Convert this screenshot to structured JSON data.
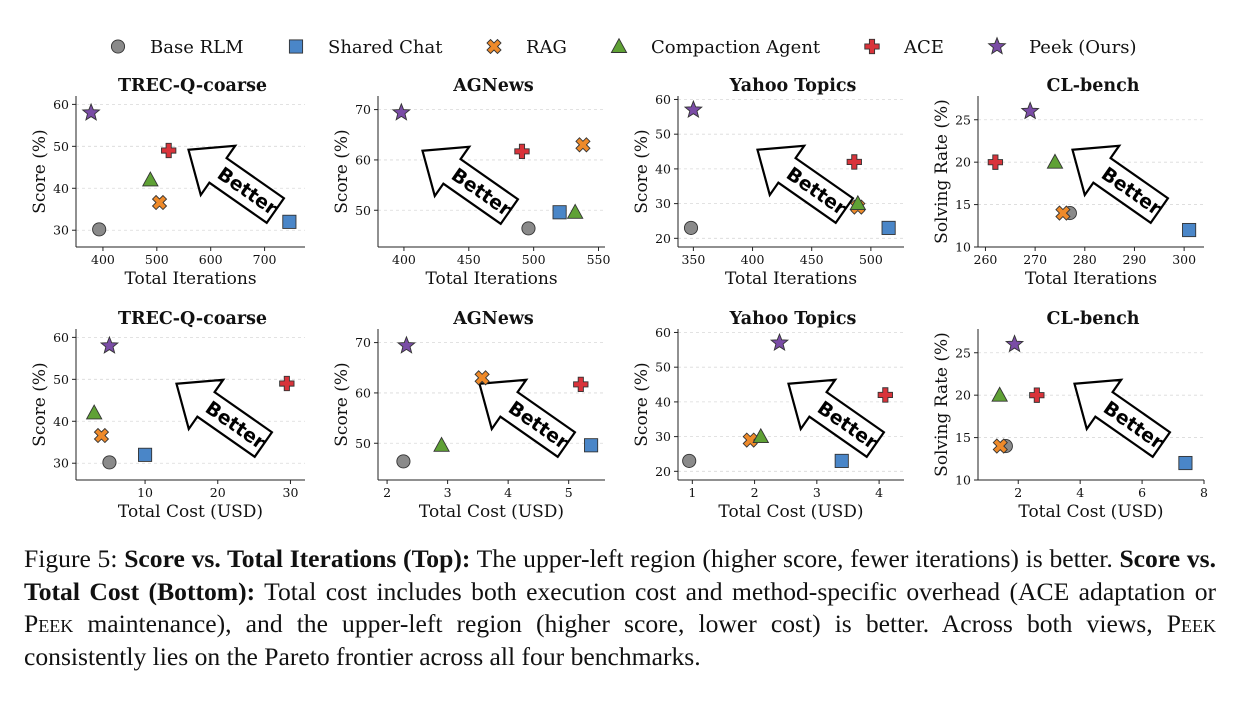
{
  "legend": [
    {
      "name": "Base RLM",
      "marker": "circle",
      "color": "#8a8a8a"
    },
    {
      "name": "Shared Chat",
      "marker": "square",
      "color": "#4a86c8"
    },
    {
      "name": "RAG",
      "marker": "x",
      "color": "#ee8a2a"
    },
    {
      "name": "Compaction Agent",
      "marker": "triangle",
      "color": "#5fa135"
    },
    {
      "name": "ACE",
      "marker": "plus",
      "color": "#d9333a"
    },
    {
      "name": "Peek (Ours)",
      "marker": "star",
      "color": "#7a4ca6"
    }
  ],
  "annotation": "Better",
  "chart_data": [
    {
      "type": "scatter",
      "title": "TREC-Q-coarse",
      "xlabel": "Total Iterations",
      "ylabel": "Score (%)",
      "xlim": [
        350,
        775
      ],
      "ylim": [
        26,
        62
      ],
      "xticks": [
        400,
        500,
        600,
        700
      ],
      "yticks": [
        30,
        40,
        50,
        60
      ],
      "grid": "y",
      "points": [
        {
          "series": "Base RLM",
          "x": 393,
          "y": 30.2
        },
        {
          "series": "Shared Chat",
          "x": 746,
          "y": 32
        },
        {
          "series": "RAG",
          "x": 505,
          "y": 36.6
        },
        {
          "series": "Compaction Agent",
          "x": 488,
          "y": 42
        },
        {
          "series": "ACE",
          "x": 522,
          "y": 49
        },
        {
          "series": "Peek (Ours)",
          "x": 378,
          "y": 58
        }
      ]
    },
    {
      "type": "scatter",
      "title": "AGNews",
      "xlabel": "Total Iterations",
      "ylabel": "Score (%)",
      "xlim": [
        380,
        555
      ],
      "ylim": [
        42.7,
        72.7
      ],
      "xticks": [
        400,
        450,
        500,
        550
      ],
      "yticks": [
        50,
        60,
        70
      ],
      "grid": "y",
      "points": [
        {
          "series": "Base RLM",
          "x": 496,
          "y": 46.4
        },
        {
          "series": "Shared Chat",
          "x": 520,
          "y": 49.6
        },
        {
          "series": "RAG",
          "x": 538,
          "y": 63
        },
        {
          "series": "Compaction Agent",
          "x": 532,
          "y": 49.6
        },
        {
          "series": "ACE",
          "x": 491,
          "y": 61.7
        },
        {
          "series": "Peek (Ours)",
          "x": 398,
          "y": 69.4
        }
      ]
    },
    {
      "type": "scatter",
      "title": "Yahoo Topics",
      "xlabel": "Total Iterations",
      "ylabel": "Score (%)",
      "xlim": [
        337,
        528
      ],
      "ylim": [
        17.5,
        61
      ],
      "xticks": [
        350,
        400,
        450,
        500
      ],
      "yticks": [
        20,
        30,
        40,
        50,
        60
      ],
      "grid": "y",
      "points": [
        {
          "series": "Base RLM",
          "x": 348,
          "y": 23
        },
        {
          "series": "Shared Chat",
          "x": 515,
          "y": 23
        },
        {
          "series": "RAG",
          "x": 489,
          "y": 29
        },
        {
          "series": "Compaction Agent",
          "x": 489,
          "y": 30
        },
        {
          "series": "ACE",
          "x": 486,
          "y": 42
        },
        {
          "series": "Peek (Ours)",
          "x": 350,
          "y": 57
        }
      ]
    },
    {
      "type": "scatter",
      "title": "CL-bench",
      "xlabel": "Total Iterations",
      "ylabel": "Solving Rate (%)",
      "xlim": [
        258.5,
        304
      ],
      "ylim": [
        10,
        27.8
      ],
      "xticks": [
        260,
        270,
        280,
        290,
        300
      ],
      "yticks": [
        10,
        15,
        20,
        25
      ],
      "grid": "y",
      "points": [
        {
          "series": "Base RLM",
          "x": 277,
          "y": 14
        },
        {
          "series": "Shared Chat",
          "x": 301,
          "y": 12
        },
        {
          "series": "RAG",
          "x": 275.6,
          "y": 14
        },
        {
          "series": "Compaction Agent",
          "x": 274,
          "y": 20
        },
        {
          "series": "ACE",
          "x": 262,
          "y": 20
        },
        {
          "series": "Peek (Ours)",
          "x": 269,
          "y": 26
        }
      ]
    },
    {
      "type": "scatter",
      "title": "TREC-Q-coarse",
      "xlabel": "Total Cost (USD)",
      "ylabel": "Score (%)",
      "xlim": [
        0.5,
        32
      ],
      "ylim": [
        26,
        62
      ],
      "xticks": [
        10,
        20,
        30
      ],
      "yticks": [
        30,
        40,
        50,
        60
      ],
      "grid": "y",
      "points": [
        {
          "series": "Base RLM",
          "x": 5.1,
          "y": 30.2
        },
        {
          "series": "Shared Chat",
          "x": 10,
          "y": 32
        },
        {
          "series": "RAG",
          "x": 4,
          "y": 36.6
        },
        {
          "series": "Compaction Agent",
          "x": 3,
          "y": 42
        },
        {
          "series": "ACE",
          "x": 29.5,
          "y": 49
        },
        {
          "series": "Peek (Ours)",
          "x": 5.1,
          "y": 58
        }
      ]
    },
    {
      "type": "scatter",
      "title": "AGNews",
      "xlabel": "Total Cost (USD)",
      "ylabel": "Score (%)",
      "xlim": [
        1.85,
        5.6
      ],
      "ylim": [
        42.7,
        72.7
      ],
      "xticks": [
        2,
        3,
        4,
        5
      ],
      "yticks": [
        50,
        60,
        70
      ],
      "grid": "y",
      "points": [
        {
          "series": "Base RLM",
          "x": 2.27,
          "y": 46.4
        },
        {
          "series": "Shared Chat",
          "x": 5.37,
          "y": 49.6
        },
        {
          "series": "RAG",
          "x": 3.57,
          "y": 63
        },
        {
          "series": "Compaction Agent",
          "x": 2.9,
          "y": 49.6
        },
        {
          "series": "ACE",
          "x": 5.2,
          "y": 61.7
        },
        {
          "series": "Peek (Ours)",
          "x": 2.32,
          "y": 69.4
        }
      ]
    },
    {
      "type": "scatter",
      "title": "Yahoo Topics",
      "xlabel": "Total Cost (USD)",
      "ylabel": "Score (%)",
      "xlim": [
        0.77,
        4.4
      ],
      "ylim": [
        17.5,
        61
      ],
      "xticks": [
        1,
        2,
        3,
        4
      ],
      "yticks": [
        20,
        30,
        40,
        50,
        60
      ],
      "grid": "y",
      "points": [
        {
          "series": "Base RLM",
          "x": 0.95,
          "y": 23
        },
        {
          "series": "Shared Chat",
          "x": 3.4,
          "y": 23
        },
        {
          "series": "RAG",
          "x": 1.93,
          "y": 29
        },
        {
          "series": "Compaction Agent",
          "x": 2.1,
          "y": 30
        },
        {
          "series": "ACE",
          "x": 4.1,
          "y": 42
        },
        {
          "series": "Peek (Ours)",
          "x": 2.4,
          "y": 57
        }
      ]
    },
    {
      "type": "scatter",
      "title": "CL-bench",
      "xlabel": "Total Cost (USD)",
      "ylabel": "Solving Rate (%)",
      "xlim": [
        0.7,
        8
      ],
      "ylim": [
        10,
        27.8
      ],
      "xticks": [
        2,
        4,
        6,
        8
      ],
      "yticks": [
        10,
        15,
        20,
        25
      ],
      "grid": "y",
      "points": [
        {
          "series": "Base RLM",
          "x": 1.6,
          "y": 14
        },
        {
          "series": "Shared Chat",
          "x": 7.4,
          "y": 12
        },
        {
          "series": "RAG",
          "x": 1.42,
          "y": 14
        },
        {
          "series": "Compaction Agent",
          "x": 1.4,
          "y": 20
        },
        {
          "series": "ACE",
          "x": 2.6,
          "y": 20
        },
        {
          "series": "Peek (Ours)",
          "x": 1.88,
          "y": 26
        }
      ]
    }
  ],
  "caption": {
    "label": "Figure 5:",
    "bold1": "Score vs. Total Iterations (Top):",
    "text1": "The upper-left region (higher score, fewer iterations) is better.",
    "bold2": "Score vs. Total Cost (Bottom):",
    "text2a": "Total cost includes both execution cost and method-specific overhead (ACE adaptation or",
    "peek1": "Peek",
    "text2b": "maintenance), and the upper-left region (higher score, lower cost) is better. Across both views,",
    "peek2": "Peek",
    "text2c": "consistently lies on the Pareto frontier across all four benchmarks."
  }
}
